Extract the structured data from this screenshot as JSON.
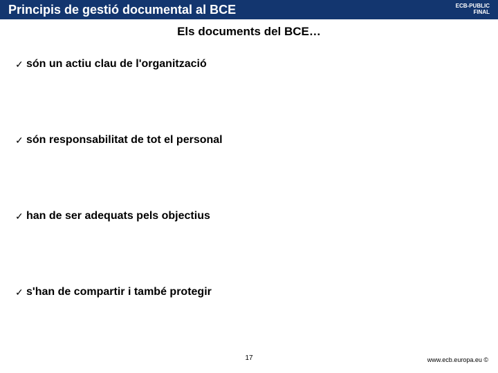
{
  "colors": {
    "title_bar_bg": "#13366f",
    "title_text": "#ffffff",
    "classification_text": "#ffffff",
    "check_mark": "#000000",
    "body_text": "#000000",
    "background": "#ffffff"
  },
  "typography": {
    "title_fontsize": 18,
    "subtitle_fontsize": 17,
    "bullet_fontsize": 16,
    "classification_fontsize": 8,
    "footer_fontsize": 9,
    "pagenum_fontsize": 10,
    "font_family": "Arial"
  },
  "header": {
    "title": "Principis de gestió documental al BCE",
    "classification_line1": "ECB-PUBLIC",
    "classification_line2": "FINAL"
  },
  "subtitle": "Els documents del BCE…",
  "bullets": [
    {
      "text": "són un actiu clau de l'organització"
    },
    {
      "text": "són responsabilitat de tot el personal"
    },
    {
      "text": "han de ser adequats pels objectius"
    },
    {
      "text": "s'han de compartir i també protegir"
    }
  ],
  "check_glyph": "✓",
  "page_number": "17",
  "footer": {
    "url": "www.ecb.europa.eu",
    "copyright": " ©"
  },
  "layout": {
    "slide_width": 720,
    "slide_height": 540,
    "title_bar_height": 28,
    "bullet_vertical_gap": 88
  }
}
